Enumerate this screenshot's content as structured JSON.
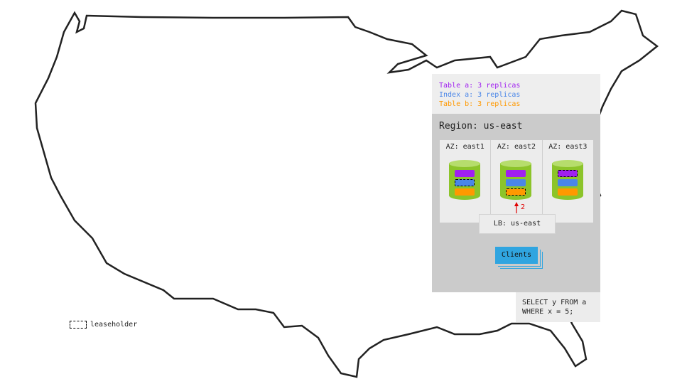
{
  "replicas": [
    {
      "text": "Table a: 3 replicas",
      "color": "#a020f0"
    },
    {
      "text": "Index a: 3 replicas",
      "color": "#4a86e8"
    },
    {
      "text": "Table b: 3 replicas",
      "color": "#ff9900"
    }
  ],
  "region": {
    "title": "Region: us-east",
    "zones": [
      {
        "label": "AZ: east1",
        "leaseholder": 1
      },
      {
        "label": "AZ: east2",
        "leaseholder": 2
      },
      {
        "label": "AZ: east3",
        "leaseholder": 0
      }
    ],
    "load_balancer": "LB: us-east",
    "arrow_label": "2",
    "clients": "Clients"
  },
  "query": {
    "line1": "SELECT y FROM a",
    "line2": "WHERE x = 5;"
  },
  "legend": {
    "leaseholder": "leaseholder"
  },
  "colors": {
    "cylinder": "#8cc42a",
    "clients": "#30a5e0",
    "arrow": "#e00000"
  }
}
